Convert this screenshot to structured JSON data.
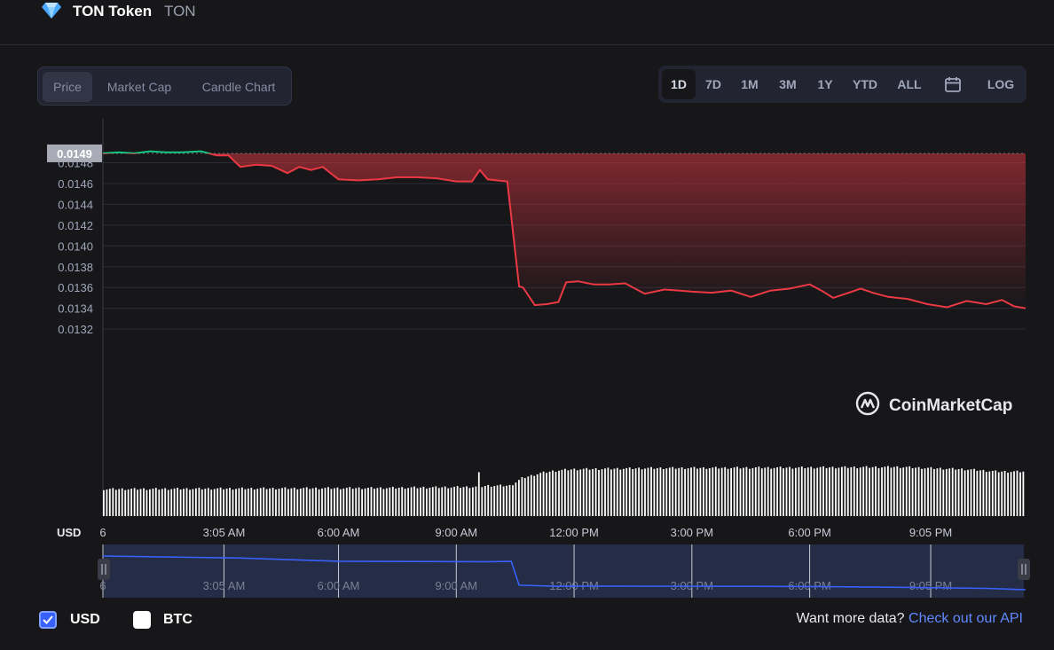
{
  "header": {
    "token_name": "TON Token",
    "token_symbol": "TON",
    "icon": "gem-icon"
  },
  "tabs": [
    {
      "label": "Price",
      "active": true
    },
    {
      "label": "Market Cap",
      "active": false
    },
    {
      "label": "Candle Chart",
      "active": false
    }
  ],
  "ranges": [
    {
      "label": "1D",
      "active": true
    },
    {
      "label": "7D",
      "active": false
    },
    {
      "label": "1M",
      "active": false
    },
    {
      "label": "3M",
      "active": false
    },
    {
      "label": "1Y",
      "active": false
    },
    {
      "label": "YTD",
      "active": false
    },
    {
      "label": "ALL",
      "active": false
    }
  ],
  "calendar_icon": "calendar-icon",
  "log_label": "LOG",
  "chart_data": {
    "type": "area",
    "ylabel": "USD",
    "ylim": [
      0.0131,
      0.015
    ],
    "y_ticks": [
      "0.0148",
      "0.0146",
      "0.0144",
      "0.0142",
      "0.0140",
      "0.0138",
      "0.0136",
      "0.0134",
      "0.0132"
    ],
    "x_ticks": [
      "6",
      "3:05 AM",
      "6:00 AM",
      "9:00 AM",
      "12:00 PM",
      "3:00 PM",
      "6:00 PM",
      "9:05 PM"
    ],
    "current_price_label": "0.0149",
    "reference_price": 0.01489,
    "grid": true,
    "colors": {
      "up": "#16c784",
      "down": "#ea3943",
      "volume": "#ffffff",
      "navigator": "#3861fb"
    },
    "watermark": "CoinMarketCap",
    "price_series": {
      "x_hours": [
        0,
        0.4,
        0.8,
        1.2,
        1.6,
        2.0,
        2.5,
        2.9,
        3.2,
        3.5,
        3.9,
        4.3,
        4.7,
        5.0,
        5.3,
        5.6,
        6.0,
        6.5,
        7.0,
        7.5,
        8.0,
        8.5,
        9.0,
        9.4,
        9.6,
        9.8,
        10.3,
        10.6,
        10.7,
        11.0,
        11.3,
        11.6,
        11.8,
        12.1,
        12.5,
        12.9,
        13.3,
        13.8,
        14.3,
        14.7,
        15.0,
        15.5,
        16.0,
        16.5,
        17.0,
        17.5,
        18.0,
        18.3,
        18.6,
        19.0,
        19.3,
        19.6,
        20.0,
        20.5,
        21.0,
        21.5,
        22.0,
        22.5,
        22.9,
        23.2,
        23.5
      ],
      "price": [
        0.01489,
        0.0149,
        0.01489,
        0.01491,
        0.0149,
        0.0149,
        0.01491,
        0.01487,
        0.01487,
        0.01476,
        0.01478,
        0.01477,
        0.0147,
        0.01476,
        0.01473,
        0.01476,
        0.01464,
        0.01463,
        0.01464,
        0.01466,
        0.01466,
        0.01465,
        0.01462,
        0.01462,
        0.01473,
        0.01464,
        0.01462,
        0.01361,
        0.0136,
        0.01343,
        0.01344,
        0.01346,
        0.01365,
        0.01366,
        0.01363,
        0.01363,
        0.01364,
        0.01354,
        0.01358,
        0.01357,
        0.01356,
        0.01355,
        0.01357,
        0.01351,
        0.01357,
        0.01359,
        0.01363,
        0.01357,
        0.0135,
        0.01355,
        0.01359,
        0.01355,
        0.01351,
        0.01349,
        0.01344,
        0.01341,
        0.01347,
        0.01344,
        0.01348,
        0.01342,
        0.0134
      ]
    },
    "volume_series": {
      "x_hours": [
        0,
        3.0,
        7.0,
        9.6,
        9.8,
        10.4,
        10.7,
        11.2,
        11.6,
        12.0,
        14.0,
        18.0,
        20.3,
        21.0,
        22.0,
        22.8,
        23.5
      ],
      "relative": [
        0.46,
        0.47,
        0.48,
        0.5,
        0.52,
        0.52,
        0.65,
        0.74,
        0.78,
        0.8,
        0.82,
        0.83,
        0.84,
        0.82,
        0.8,
        0.76,
        0.76
      ]
    },
    "navigator_series": {
      "x_hours": [
        0,
        3.5,
        6.0,
        9.8,
        10.4,
        10.6,
        11.6,
        12.0,
        18.0,
        20.5,
        22.5,
        23.5
      ],
      "price": [
        0.01489,
        0.0148,
        0.01466,
        0.01464,
        0.01465,
        0.0136,
        0.01355,
        0.01356,
        0.01354,
        0.0135,
        0.01346,
        0.0134
      ]
    }
  },
  "footer": {
    "usd_label": "USD",
    "usd_checked": true,
    "btc_label": "BTC",
    "btc_checked": false,
    "prompt_text": "Want more data?",
    "link_text": "Check out our API"
  }
}
